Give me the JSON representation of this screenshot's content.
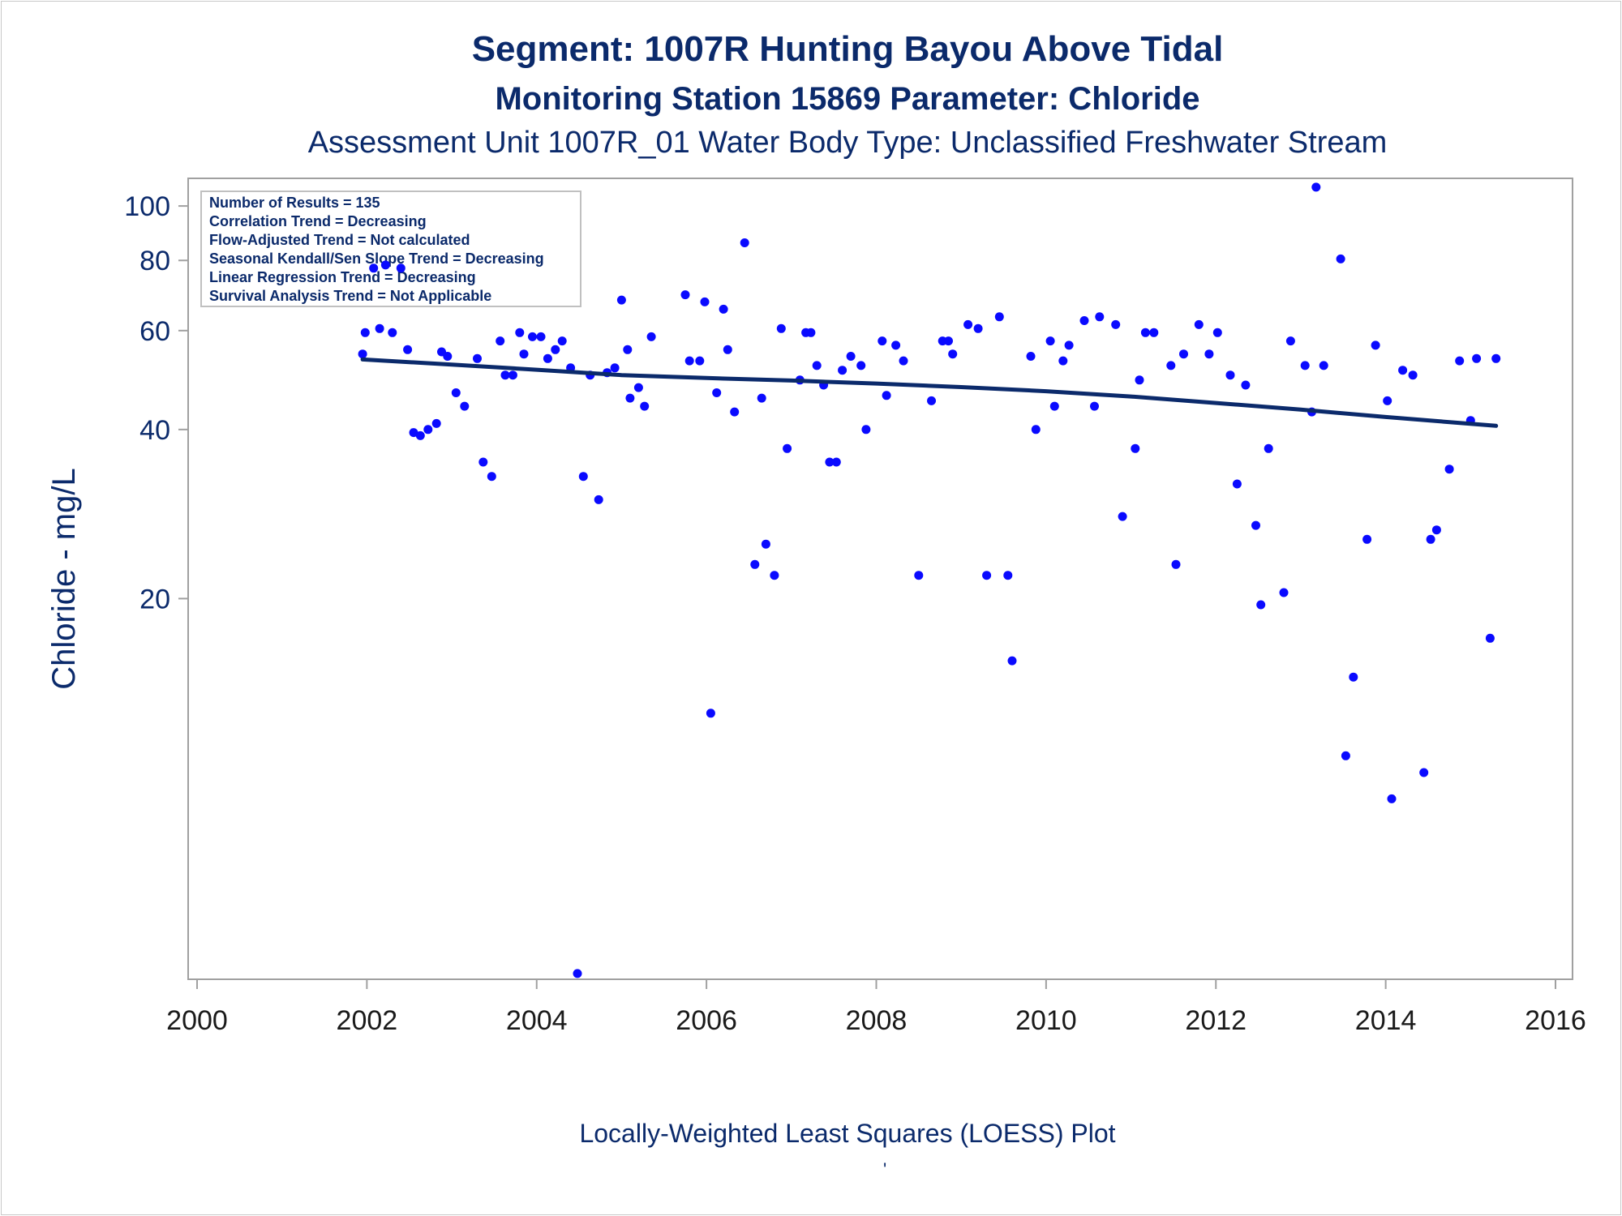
{
  "titles": {
    "line1": "Segment: 1007R  Hunting Bayou Above Tidal",
    "line2": "Monitoring Station 15869 Parameter: Chloride",
    "line3": "Assessment Unit 1007R_01   Water Body Type: Unclassified Freshwater Stream"
  },
  "footnote": "Locally-Weighted Least Squares (LOESS) Plot",
  "footnote_mark": "'",
  "legend": {
    "lines": [
      "Number of Results = 135",
      "Correlation Trend = Decreasing",
      "Flow-Adjusted Trend = Not calculated",
      "Seasonal Kendall/Sen Slope Trend = Decreasing",
      "Linear Regression Trend = Decreasing",
      "Survival Analysis Trend = Not Applicable"
    ]
  },
  "colors": {
    "points": "#0a0aff",
    "line": "#0b2a6b",
    "text": "#0b2a6b",
    "axis": "#a0a0a0"
  },
  "chart_data": {
    "type": "scatter",
    "title": "Segment: 1007R  Hunting Bayou Above Tidal",
    "xlabel": "",
    "ylabel": "Chloride - mg/L",
    "xlim": [
      2000,
      2016
    ],
    "ylim": [
      4.2,
      112
    ],
    "yscale": "log",
    "xticks": [
      2000,
      2002,
      2004,
      2006,
      2008,
      2010,
      2012,
      2014,
      2016
    ],
    "yticks": [
      20,
      40,
      60,
      80,
      100
    ],
    "grid": false,
    "legend_placement": "top-left",
    "series": [
      {
        "type": "scatter",
        "points": [
          [
            2001.95,
            54.5
          ],
          [
            2001.98,
            59.5
          ],
          [
            2002.08,
            77.5
          ],
          [
            2002.15,
            60.5
          ],
          [
            2002.22,
            78.5
          ],
          [
            2002.3,
            59.5
          ],
          [
            2002.4,
            77.5
          ],
          [
            2002.48,
            55.5
          ],
          [
            2002.55,
            39.5
          ],
          [
            2002.63,
            39
          ],
          [
            2002.72,
            40
          ],
          [
            2002.82,
            41
          ],
          [
            2002.88,
            55
          ],
          [
            2002.95,
            54
          ],
          [
            2003.05,
            46.5
          ],
          [
            2003.15,
            44
          ],
          [
            2003.3,
            53.5
          ],
          [
            2003.37,
            35
          ],
          [
            2003.47,
            33
          ],
          [
            2003.57,
            57.5
          ],
          [
            2003.63,
            50
          ],
          [
            2003.72,
            50
          ],
          [
            2003.8,
            59.5
          ],
          [
            2003.85,
            54.5
          ],
          [
            2003.95,
            58.5
          ],
          [
            2004.05,
            58.5
          ],
          [
            2004.13,
            53.5
          ],
          [
            2004.22,
            55.5
          ],
          [
            2004.3,
            57.5
          ],
          [
            2004.4,
            51.5
          ],
          [
            2004.48,
            4.3
          ],
          [
            2004.55,
            33
          ],
          [
            2004.63,
            50
          ],
          [
            2004.73,
            30
          ],
          [
            2004.83,
            50.5
          ],
          [
            2004.92,
            51.5
          ],
          [
            2005.0,
            68
          ],
          [
            2005.07,
            55.5
          ],
          [
            2005.1,
            45.5
          ],
          [
            2005.2,
            47.5
          ],
          [
            2005.27,
            44
          ],
          [
            2005.35,
            58.5
          ],
          [
            2005.75,
            69.5
          ],
          [
            2005.8,
            53
          ],
          [
            2005.92,
            53
          ],
          [
            2005.98,
            67.5
          ],
          [
            2006.05,
            12.5
          ],
          [
            2006.12,
            46.5
          ],
          [
            2006.2,
            65.5
          ],
          [
            2006.25,
            55.5
          ],
          [
            2006.33,
            43
          ],
          [
            2006.45,
            86
          ],
          [
            2006.57,
            23
          ],
          [
            2006.65,
            45.5
          ],
          [
            2006.7,
            25
          ],
          [
            2006.8,
            22
          ],
          [
            2006.88,
            60.5
          ],
          [
            2006.95,
            37
          ],
          [
            2007.1,
            49
          ],
          [
            2007.17,
            59.5
          ],
          [
            2007.23,
            59.5
          ],
          [
            2007.3,
            52
          ],
          [
            2007.38,
            48
          ],
          [
            2007.45,
            35
          ],
          [
            2007.53,
            35
          ],
          [
            2007.6,
            51
          ],
          [
            2007.7,
            54
          ],
          [
            2007.82,
            52
          ],
          [
            2007.88,
            40
          ],
          [
            2008.07,
            57.5
          ],
          [
            2008.12,
            46
          ],
          [
            2008.23,
            56.5
          ],
          [
            2008.32,
            53
          ],
          [
            2008.5,
            22
          ],
          [
            2008.65,
            45
          ],
          [
            2008.78,
            57.5
          ],
          [
            2008.85,
            57.5
          ],
          [
            2008.9,
            54.5
          ],
          [
            2009.08,
            61.5
          ],
          [
            2009.2,
            60.5
          ],
          [
            2009.3,
            22
          ],
          [
            2009.45,
            63.5
          ],
          [
            2009.55,
            22
          ],
          [
            2009.6,
            15.5
          ],
          [
            2009.82,
            54
          ],
          [
            2009.88,
            40
          ],
          [
            2010.05,
            57.5
          ],
          [
            2010.1,
            44
          ],
          [
            2010.2,
            53
          ],
          [
            2010.27,
            56.5
          ],
          [
            2010.45,
            62.5
          ],
          [
            2010.57,
            44
          ],
          [
            2010.63,
            63.5
          ],
          [
            2010.82,
            61.5
          ],
          [
            2010.9,
            28
          ],
          [
            2011.05,
            37
          ],
          [
            2011.1,
            49
          ],
          [
            2011.17,
            59.5
          ],
          [
            2011.27,
            59.5
          ],
          [
            2011.47,
            52
          ],
          [
            2011.53,
            23
          ],
          [
            2011.62,
            54.5
          ],
          [
            2011.8,
            61.5
          ],
          [
            2011.92,
            54.5
          ],
          [
            2012.02,
            59.5
          ],
          [
            2012.17,
            50
          ],
          [
            2012.25,
            32
          ],
          [
            2012.35,
            48
          ],
          [
            2012.47,
            27
          ],
          [
            2012.53,
            19.5
          ],
          [
            2012.62,
            37
          ],
          [
            2012.8,
            20.5
          ],
          [
            2012.88,
            57.5
          ],
          [
            2013.05,
            52
          ],
          [
            2013.13,
            43
          ],
          [
            2013.18,
            108
          ],
          [
            2013.27,
            52
          ],
          [
            2013.47,
            80.5
          ],
          [
            2013.53,
            10.5
          ],
          [
            2013.62,
            14.5
          ],
          [
            2013.78,
            25.5
          ],
          [
            2013.88,
            56.5
          ],
          [
            2014.02,
            45
          ],
          [
            2014.07,
            8.8
          ],
          [
            2014.2,
            51
          ],
          [
            2014.32,
            50
          ],
          [
            2014.45,
            9.8
          ],
          [
            2014.53,
            25.5
          ],
          [
            2014.6,
            26.5
          ],
          [
            2014.75,
            34
          ],
          [
            2014.87,
            53
          ],
          [
            2015.0,
            41.5
          ],
          [
            2015.07,
            53.5
          ],
          [
            2015.23,
            17
          ],
          [
            2015.3,
            53.5
          ]
        ]
      },
      {
        "type": "line",
        "points": [
          [
            2001.95,
            53.3
          ],
          [
            2003.0,
            52.2
          ],
          [
            2004.0,
            51.1
          ],
          [
            2005.0,
            50.0
          ],
          [
            2006.0,
            49.4
          ],
          [
            2007.0,
            48.9
          ],
          [
            2008.0,
            48.3
          ],
          [
            2009.0,
            47.6
          ],
          [
            2010.0,
            46.8
          ],
          [
            2011.0,
            45.8
          ],
          [
            2012.0,
            44.6
          ],
          [
            2013.0,
            43.4
          ],
          [
            2014.0,
            42.1
          ],
          [
            2015.3,
            40.6
          ]
        ]
      }
    ]
  }
}
